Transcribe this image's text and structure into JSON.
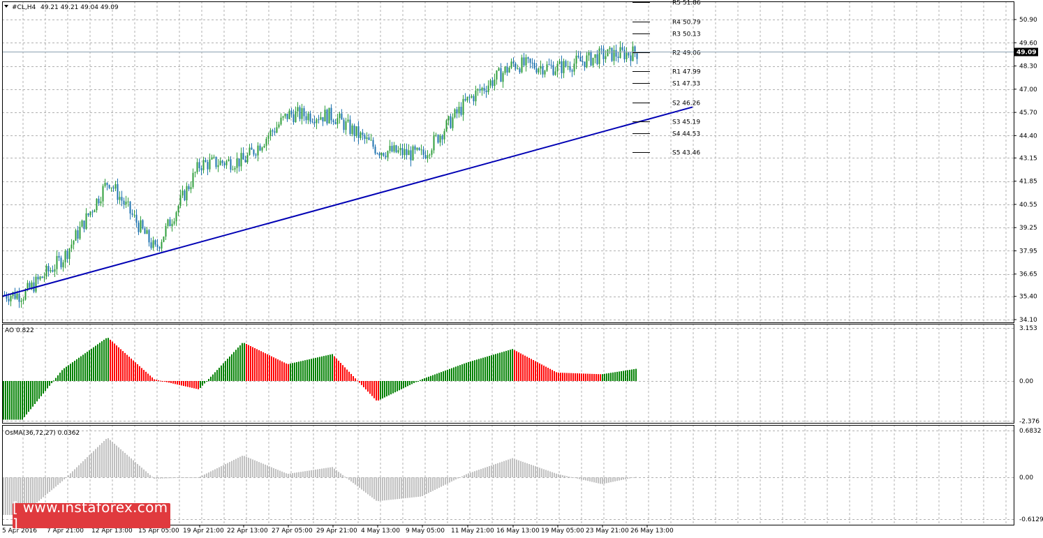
{
  "main": {
    "title": "#CL,H4",
    "ohlc": "49.21 49.21 49.04 49.09",
    "current_price_box": "49.09",
    "price_ticks": [
      "50.90",
      "49.60",
      "48.30",
      "47.00",
      "45.70",
      "44.40",
      "43.15",
      "41.85",
      "40.55",
      "39.25",
      "37.95",
      "36.65",
      "35.40",
      "34.10"
    ],
    "pivots": [
      {
        "label": "R5 51.86",
        "value": 51.86
      },
      {
        "label": "R4 50.79",
        "value": 50.79
      },
      {
        "label": "R3 50.13",
        "value": 50.13
      },
      {
        "label": "R2 49.06",
        "value": 49.06
      },
      {
        "label": "R1 47.99",
        "value": 47.99
      },
      {
        "label": "S1 47.33",
        "value": 47.33
      },
      {
        "label": "S2 46.26",
        "value": 46.26
      },
      {
        "label": "S3 45.19",
        "value": 45.19
      },
      {
        "label": "S4 44.53",
        "value": 44.53
      },
      {
        "label": "S5 43.46",
        "value": 43.46
      }
    ]
  },
  "ao": {
    "title": "AO 0.822",
    "ticks": [
      "3.153",
      "0.00",
      "-2.376"
    ]
  },
  "osma": {
    "title": "OsMA(36,72,27) 0.0362",
    "ticks": [
      "0.6832",
      "0.00",
      "-0.6129"
    ]
  },
  "time_labels": [
    "5 Apr 2016",
    "7 Apr 21:00",
    "12 Apr 13:00",
    "15 Apr 05:00",
    "19 Apr 21:00",
    "22 Apr 13:00",
    "27 Apr 05:00",
    "29 Apr 21:00",
    "4 May 13:00",
    "9 May 05:00",
    "11 May 21:00",
    "16 May 13:00",
    "19 May 05:00",
    "23 May 21:00",
    "26 May 13:00"
  ],
  "watermark": "[ www.instaforex.com ]",
  "colors": {
    "bull": "#008000",
    "bear": "#ff0000",
    "candle_up": "#2e9e3a",
    "candle_down": "#1e73b0",
    "trendline": "#0000b4",
    "osma": "#c0c0c0",
    "grid": "#b0b0b0"
  },
  "chart_data": [
    {
      "type": "candlestick",
      "title": "#CL,H4",
      "ylim": [
        34.1,
        50.9
      ],
      "trendline": [
        {
          "x": "5 Apr 2016",
          "y": 35.4
        },
        {
          "x": "26 May 13:00",
          "y": 46.0
        }
      ],
      "close_path": [
        {
          "x": "5 Apr 2016",
          "y": 35.5
        },
        {
          "x": "7 Apr 21:00",
          "y": 37.6
        },
        {
          "x": "12 Apr 13:00",
          "y": 41.9
        },
        {
          "x": "15 Apr 05:00",
          "y": 38.0
        },
        {
          "x": "19 Apr 21:00",
          "y": 42.8
        },
        {
          "x": "22 Apr 13:00",
          "y": 43.0
        },
        {
          "x": "27 Apr 05:00",
          "y": 45.6
        },
        {
          "x": "29 Apr 21:00",
          "y": 45.5
        },
        {
          "x": "4 May 13:00",
          "y": 43.6
        },
        {
          "x": "9 May 05:00",
          "y": 43.3
        },
        {
          "x": "11 May 21:00",
          "y": 46.4
        },
        {
          "x": "16 May 13:00",
          "y": 48.4
        },
        {
          "x": "19 May 05:00",
          "y": 48.2
        },
        {
          "x": "23 May 21:00",
          "y": 48.9
        },
        {
          "x": "26 May 13:00",
          "y": 49.09
        }
      ]
    },
    {
      "type": "bar",
      "title": "AO 0.822",
      "ylim": [
        -2.376,
        3.153
      ],
      "x": [
        "5 Apr 2016",
        "7 Apr 21:00",
        "12 Apr 13:00",
        "15 Apr 05:00",
        "19 Apr 21:00",
        "22 Apr 13:00",
        "27 Apr 05:00",
        "29 Apr 21:00",
        "4 May 13:00",
        "9 May 05:00",
        "11 May 21:00",
        "16 May 13:00",
        "19 May 05:00",
        "23 May 21:00",
        "26 May 13:00"
      ],
      "values": [
        -2.3,
        0.7,
        2.6,
        0.1,
        -0.5,
        2.3,
        1.0,
        1.6,
        -1.2,
        0.1,
        1.1,
        1.9,
        0.5,
        0.4,
        0.822
      ]
    },
    {
      "type": "bar",
      "title": "OsMA(36,72,27) 0.0362",
      "ylim": [
        -0.6129,
        0.6832
      ],
      "x": [
        "5 Apr 2016",
        "7 Apr 21:00",
        "12 Apr 13:00",
        "15 Apr 05:00",
        "19 Apr 21:00",
        "22 Apr 13:00",
        "27 Apr 05:00",
        "29 Apr 21:00",
        "4 May 13:00",
        "9 May 05:00",
        "11 May 21:00",
        "16 May 13:00",
        "19 May 05:00",
        "23 May 21:00",
        "26 May 13:00"
      ],
      "values": [
        -0.55,
        -0.05,
        0.58,
        -0.02,
        0.0,
        0.32,
        0.05,
        0.15,
        -0.35,
        -0.28,
        0.05,
        0.28,
        0.05,
        -0.1,
        0.0362
      ]
    }
  ]
}
